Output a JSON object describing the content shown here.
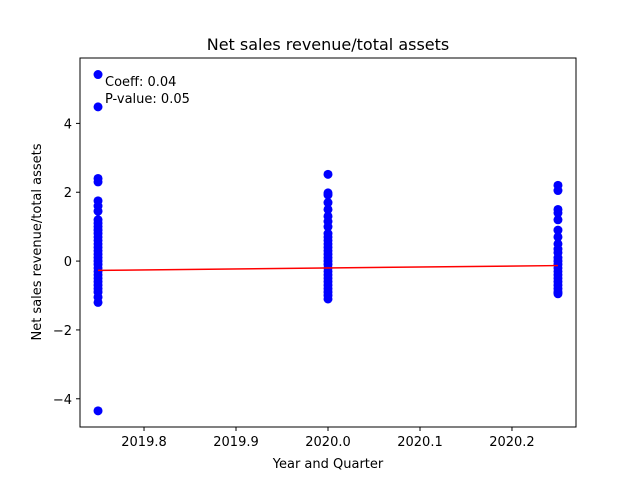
{
  "chart_data": {
    "type": "scatter",
    "title": "Net sales revenue/total assets",
    "xlabel": "Year and Quarter",
    "ylabel": "Net sales revenue/total assets",
    "xlim": [
      2019.7304,
      2020.2696
    ],
    "ylim": [
      -4.82,
      5.9
    ],
    "xticks": [
      2019.8,
      2019.9,
      2020.0,
      2020.1,
      2020.2
    ],
    "xtick_labels": [
      "2019.8",
      "2019.9",
      "2020.0",
      "2020.1",
      "2020.2"
    ],
    "yticks": [
      -4,
      -2,
      0,
      2,
      4
    ],
    "ytick_labels": [
      "−4",
      "−2",
      "0",
      "2",
      "4"
    ],
    "grid": false,
    "series": [
      {
        "color": "#0000ff",
        "points": [
          {
            "x": 2019.75,
            "y": 5.42
          },
          {
            "x": 2019.75,
            "y": 4.48
          },
          {
            "x": 2019.75,
            "y": 2.4
          },
          {
            "x": 2019.75,
            "y": 2.3
          },
          {
            "x": 2019.75,
            "y": 1.75
          },
          {
            "x": 2019.75,
            "y": 1.6
          },
          {
            "x": 2019.75,
            "y": 1.45
          },
          {
            "x": 2019.75,
            "y": 1.2
          },
          {
            "x": 2019.75,
            "y": 1.1
          },
          {
            "x": 2019.75,
            "y": 1.0
          },
          {
            "x": 2019.75,
            "y": 0.9
          },
          {
            "x": 2019.75,
            "y": 0.8
          },
          {
            "x": 2019.75,
            "y": 0.7
          },
          {
            "x": 2019.75,
            "y": 0.6
          },
          {
            "x": 2019.75,
            "y": 0.5
          },
          {
            "x": 2019.75,
            "y": 0.4
          },
          {
            "x": 2019.75,
            "y": 0.3
          },
          {
            "x": 2019.75,
            "y": 0.2
          },
          {
            "x": 2019.75,
            "y": 0.1
          },
          {
            "x": 2019.75,
            "y": 0.0
          },
          {
            "x": 2019.75,
            "y": -0.1
          },
          {
            "x": 2019.75,
            "y": -0.2
          },
          {
            "x": 2019.75,
            "y": -0.3
          },
          {
            "x": 2019.75,
            "y": -0.4
          },
          {
            "x": 2019.75,
            "y": -0.5
          },
          {
            "x": 2019.75,
            "y": -0.6
          },
          {
            "x": 2019.75,
            "y": -0.7
          },
          {
            "x": 2019.75,
            "y": -0.8
          },
          {
            "x": 2019.75,
            "y": -0.9
          },
          {
            "x": 2019.75,
            "y": -1.05
          },
          {
            "x": 2019.75,
            "y": -1.2
          },
          {
            "x": 2019.75,
            "y": -4.35
          },
          {
            "x": 2020.0,
            "y": 2.52
          },
          {
            "x": 2020.0,
            "y": 1.98
          },
          {
            "x": 2020.0,
            "y": 1.92
          },
          {
            "x": 2020.0,
            "y": 1.7
          },
          {
            "x": 2020.0,
            "y": 1.5
          },
          {
            "x": 2020.0,
            "y": 1.3
          },
          {
            "x": 2020.0,
            "y": 1.15
          },
          {
            "x": 2020.0,
            "y": 1.0
          },
          {
            "x": 2020.0,
            "y": 0.8
          },
          {
            "x": 2020.0,
            "y": 0.7
          },
          {
            "x": 2020.0,
            "y": 0.6
          },
          {
            "x": 2020.0,
            "y": 0.5
          },
          {
            "x": 2020.0,
            "y": 0.4
          },
          {
            "x": 2020.0,
            "y": 0.3
          },
          {
            "x": 2020.0,
            "y": 0.2
          },
          {
            "x": 2020.0,
            "y": 0.1
          },
          {
            "x": 2020.0,
            "y": 0.0
          },
          {
            "x": 2020.0,
            "y": -0.1
          },
          {
            "x": 2020.0,
            "y": -0.2
          },
          {
            "x": 2020.0,
            "y": -0.3
          },
          {
            "x": 2020.0,
            "y": -0.4
          },
          {
            "x": 2020.0,
            "y": -0.5
          },
          {
            "x": 2020.0,
            "y": -0.6
          },
          {
            "x": 2020.0,
            "y": -0.7
          },
          {
            "x": 2020.0,
            "y": -0.8
          },
          {
            "x": 2020.0,
            "y": -0.9
          },
          {
            "x": 2020.0,
            "y": -1.0
          },
          {
            "x": 2020.0,
            "y": -1.1
          },
          {
            "x": 2020.25,
            "y": 2.2
          },
          {
            "x": 2020.25,
            "y": 2.05
          },
          {
            "x": 2020.25,
            "y": 1.5
          },
          {
            "x": 2020.25,
            "y": 1.4
          },
          {
            "x": 2020.25,
            "y": 1.2
          },
          {
            "x": 2020.25,
            "y": 0.9
          },
          {
            "x": 2020.25,
            "y": 0.7
          },
          {
            "x": 2020.25,
            "y": 0.5
          },
          {
            "x": 2020.25,
            "y": 0.35
          },
          {
            "x": 2020.25,
            "y": 0.25
          },
          {
            "x": 2020.25,
            "y": 0.1
          },
          {
            "x": 2020.25,
            "y": 0.0
          },
          {
            "x": 2020.25,
            "y": -0.1
          },
          {
            "x": 2020.25,
            "y": -0.2
          },
          {
            "x": 2020.25,
            "y": -0.3
          },
          {
            "x": 2020.25,
            "y": -0.4
          },
          {
            "x": 2020.25,
            "y": -0.5
          },
          {
            "x": 2020.25,
            "y": -0.6
          },
          {
            "x": 2020.25,
            "y": -0.7
          },
          {
            "x": 2020.25,
            "y": -0.8
          },
          {
            "x": 2020.25,
            "y": -0.9
          },
          {
            "x": 2020.25,
            "y": -0.95
          }
        ]
      }
    ],
    "regression_line": {
      "color": "#ff0000",
      "x": [
        2019.75,
        2020.25
      ],
      "y": [
        -0.27,
        -0.13
      ]
    },
    "annotations": [
      "Coeff: 0.04",
      "P-value: 0.05"
    ]
  }
}
